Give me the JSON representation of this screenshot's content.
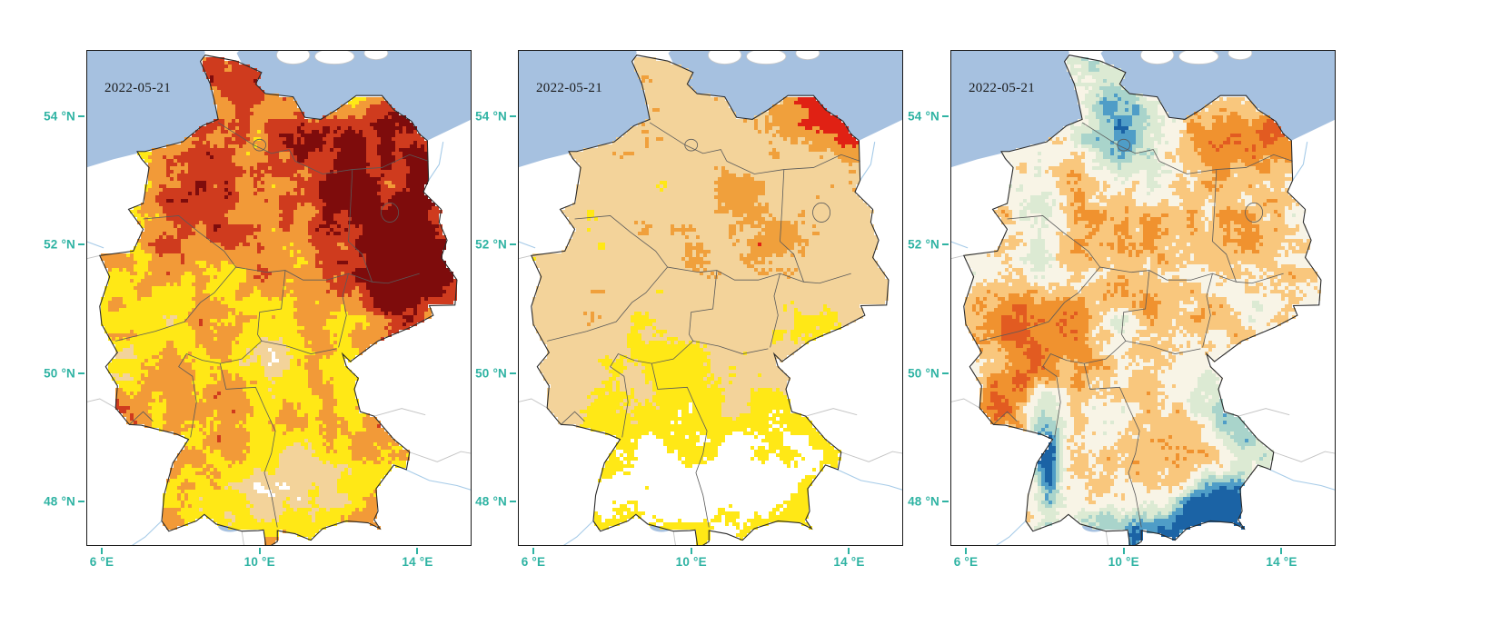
{
  "figure": {
    "date_label": "2022-05-21",
    "sea_color": "#a6c1e0",
    "land_outline_color": "#2a2a2a",
    "state_border_color": "#5a5a5a",
    "neighbor_line_color": "#c3c3c3",
    "river_color": "#a6cbe8",
    "axis": {
      "color": "#2fb3a3",
      "lon_min": 5.61,
      "lon_max": 15.37,
      "lat_min": 47.31,
      "lat_max": 55.03,
      "y_ticks": [
        {
          "label": "54 °N",
          "lat": 54
        },
        {
          "label": "52 °N",
          "lat": 52
        },
        {
          "label": "50 °N",
          "lat": 50
        },
        {
          "label": "48 °N",
          "lat": 48
        }
      ],
      "x_ticks": [
        {
          "label": "6 °E",
          "lon": 6
        },
        {
          "label": "10 °E",
          "lon": 10
        },
        {
          "label": "14 °E",
          "lon": 14
        }
      ]
    }
  },
  "panels": [
    {
      "id": "left",
      "date": "2022-05-21",
      "render": {
        "seed": 11,
        "base": 0.08,
        "amp": 0.72,
        "north": 0.18,
        "blobs": [
          [
            12.1,
            52.5,
            1.5,
            0.85,
            0.4
          ],
          [
            13.7,
            51.25,
            0.75,
            0.5,
            0.32
          ],
          [
            13.5,
            54.2,
            0.4,
            0.3,
            0.3
          ],
          [
            14.1,
            52.9,
            0.35,
            0.8,
            0.3
          ],
          [
            9.4,
            49.35,
            0.55,
            0.45,
            0.22
          ],
          [
            11.9,
            49.1,
            0.6,
            0.45,
            0.26
          ],
          [
            11.4,
            48.35,
            1.1,
            0.55,
            -0.3
          ],
          [
            10.3,
            50.55,
            0.6,
            0.4,
            -0.22
          ]
        ],
        "thresholds": [
          0.12,
          0.3,
          0.5,
          0.68,
          0.84
        ],
        "colors": [
          "#ffffff",
          "#f3d39a",
          "#ffe816",
          "#f29a38",
          "#cf3b1e",
          "#7e0c0c"
        ]
      }
    },
    {
      "id": "middle",
      "date": "2022-05-21",
      "render": {
        "seed": 22,
        "base": 0.18,
        "amp": 0.5,
        "north": 0.26,
        "blobs": [
          [
            13.4,
            54.25,
            0.8,
            0.35,
            0.42
          ],
          [
            12.0,
            52.0,
            0.7,
            0.55,
            0.34
          ],
          [
            11.2,
            52.75,
            0.5,
            0.35,
            0.26
          ],
          [
            14.05,
            53.6,
            0.35,
            0.45,
            0.3
          ],
          [
            11.5,
            48.4,
            1.8,
            0.8,
            -0.32
          ],
          [
            9.0,
            48.35,
            1.0,
            0.6,
            -0.22
          ],
          [
            12.4,
            48.6,
            1.0,
            0.5,
            -0.12
          ]
        ],
        "thresholds": [
          0.2,
          0.42,
          0.72,
          0.9
        ],
        "colors": [
          "#ffffff",
          "#ffe816",
          "#f3d39a",
          "#f0a03c",
          "#e02114"
        ]
      }
    },
    {
      "id": "right",
      "date": "2022-05-21",
      "render": {
        "seed": 33,
        "base": 0.22,
        "amp": 0.56,
        "north": 0,
        "blobs": [
          [
            11.6,
            47.55,
            1.5,
            0.3,
            -0.45
          ],
          [
            12.7,
            47.9,
            0.8,
            0.4,
            -0.32
          ],
          [
            8.05,
            48.3,
            0.3,
            0.85,
            -0.4
          ],
          [
            9.7,
            54.2,
            0.8,
            0.5,
            -0.33
          ],
          [
            10.2,
            53.5,
            0.7,
            0.4,
            -0.2
          ],
          [
            12.9,
            49.4,
            0.7,
            0.45,
            -0.22
          ],
          [
            13.4,
            50.9,
            0.5,
            0.4,
            -0.18
          ],
          [
            7.4,
            50.4,
            0.8,
            0.9,
            0.3
          ],
          [
            13.2,
            53.4,
            1.0,
            0.7,
            0.26
          ],
          [
            14.2,
            53.9,
            0.4,
            0.3,
            0.34
          ],
          [
            10.7,
            51.3,
            0.9,
            0.5,
            0.22
          ],
          [
            6.8,
            49.5,
            0.5,
            0.5,
            0.24
          ]
        ],
        "thresholds": [
          0.1,
          0.2,
          0.3,
          0.42,
          0.55,
          0.68,
          0.84
        ],
        "colors": [
          "#1b63a5",
          "#4f9dc7",
          "#a9d4cb",
          "#dcead3",
          "#f8f4e6",
          "#f9c77d",
          "#f0922f",
          "#e25b21"
        ]
      }
    }
  ],
  "chart_data": [
    {
      "type": "heatmap",
      "panel": "left",
      "date_annotation": "2022-05-21",
      "region": "Germany (gridded raster map, neighbouring countries blank, sea in light blue)",
      "x_ticks": [
        "6 °E",
        "10 °E",
        "14 °E"
      ],
      "y_ticks": [
        "54 °N",
        "52 °N",
        "50 °N",
        "48 °N"
      ],
      "lon_range": [
        5.61,
        15.37
      ],
      "lat_range": [
        47.31,
        55.03
      ],
      "palette_low_to_high": [
        "#ffffff",
        "#f3d39a",
        "#ffe816",
        "#f29a38",
        "#cf3b1e",
        "#7e0c0c"
      ],
      "pattern_summary": "Widespread yellow/orange/tan values over most of Germany with large dark-red clusters across the northeast and east-central regions and along the eastern border; lighter white/yellow patches in the south (Bavaria) and centre."
    },
    {
      "type": "heatmap",
      "panel": "middle",
      "date_annotation": "2022-05-21",
      "region": "Germany (gridded raster map, neighbouring countries blank, sea in light blue)",
      "x_ticks": [
        "6 °E",
        "10 °E",
        "14 °E"
      ],
      "y_ticks": [
        "54 °N",
        "52 °N",
        "50 °N",
        "48 °N"
      ],
      "lon_range": [
        5.61,
        15.37
      ],
      "lat_range": [
        47.31,
        55.03
      ],
      "palette_low_to_high": [
        "#ffffff",
        "#ffe816",
        "#f3d39a",
        "#f0a03c",
        "#e02114"
      ],
      "pattern_summary": "Mostly tan and orange across northern and central Germany with red clusters in the far northeast (Ruegen/Vorpommern) and centre-east; the south is largely white with scattered yellow and tan patches."
    },
    {
      "type": "heatmap",
      "panel": "right",
      "date_annotation": "2022-05-21",
      "region": "Germany (gridded raster map, neighbouring countries blank, sea in light blue)",
      "x_ticks": [
        "6 °E",
        "10 °E",
        "14 °E"
      ],
      "y_ticks": [
        "54 °N",
        "52 °N",
        "50 °N",
        "48 °N"
      ],
      "lon_range": [
        5.61,
        15.37
      ],
      "lat_range": [
        47.31,
        55.03
      ],
      "palette_low_to_high": [
        "#1b63a5",
        "#4f9dc7",
        "#a9d4cb",
        "#dcead3",
        "#f8f4e6",
        "#f9c77d",
        "#f0922f",
        "#e25b21"
      ],
      "pattern_summary": "Diverging blue-to-orange speckled anomaly field: deep blue along the Alpine south rim, the Black Forest strip and parts of the north; orange/red patches in the west, centre and northeast corner; pale green/cream elsewhere."
    }
  ]
}
